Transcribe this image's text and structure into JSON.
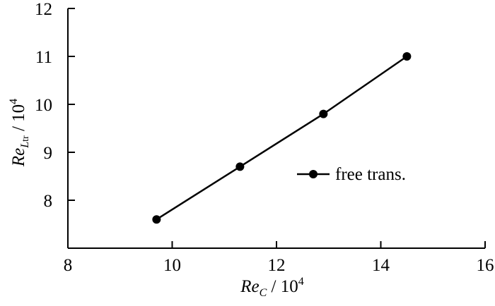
{
  "chart_data": {
    "type": "line",
    "xlabel": {
      "var": "Re",
      "sub": "C",
      "unit": " / 10",
      "exp": "4"
    },
    "ylabel": {
      "var": "Re",
      "sub": "L",
      "sub2": "tr",
      "unit": " / 10",
      "exp": "4"
    },
    "xlim": [
      8,
      16
    ],
    "ylim": [
      7.0,
      12.0
    ],
    "xticks": [
      8,
      10,
      12,
      14,
      16
    ],
    "yticks": [
      8,
      9,
      10,
      11,
      12
    ],
    "grid": false,
    "legend_position": "center-right",
    "series": [
      {
        "name": "free trans.",
        "color": "#000000",
        "marker": "circle",
        "x": [
          9.7,
          11.3,
          12.9,
          14.5
        ],
        "y": [
          7.6,
          8.7,
          9.8,
          11.0
        ]
      }
    ]
  }
}
